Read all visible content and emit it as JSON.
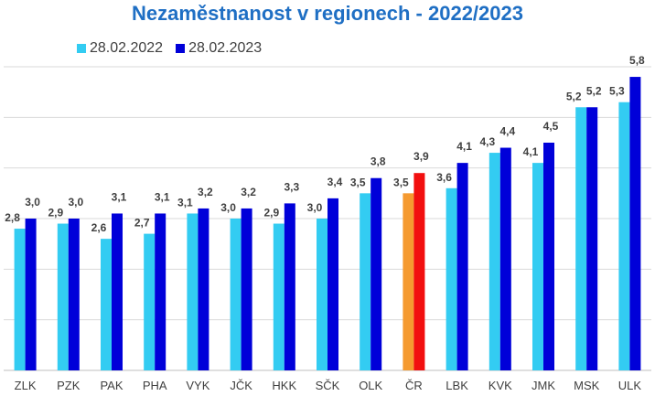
{
  "chart_data": {
    "type": "bar",
    "title": "Nezaměstnanost v regionech - 2022/2023",
    "categories": [
      "ZLK",
      "PZK",
      "PAK",
      "PHA",
      "VYK",
      "JČK",
      "HKK",
      "SČK",
      "OLK",
      "ČR",
      "LBK",
      "KVK",
      "JMK",
      "MSK",
      "ULK"
    ],
    "series": [
      {
        "name": "28.02.2022",
        "values": [
          2.8,
          2.9,
          2.6,
          2.7,
          3.1,
          3.0,
          2.9,
          3.0,
          3.5,
          3.5,
          3.6,
          4.3,
          4.1,
          5.2,
          5.3
        ],
        "labels": [
          "2,8",
          "2,9",
          "2,6",
          "2,7",
          "3,1",
          "3,0",
          "2,9",
          "3,0",
          "3,5",
          "3,5",
          "3,6",
          "4,3",
          "4,1",
          "5,2",
          "5,3"
        ]
      },
      {
        "name": "28.02.2023",
        "values": [
          3.0,
          3.0,
          3.1,
          3.1,
          3.2,
          3.2,
          3.3,
          3.4,
          3.8,
          3.9,
          4.1,
          4.4,
          4.5,
          5.2,
          5.8
        ],
        "labels": [
          "3,0",
          "3,0",
          "3,1",
          "3,1",
          "3,2",
          "3,2",
          "3,3",
          "3,4",
          "3,8",
          "3,9",
          "4,1",
          "4,4",
          "4,5",
          "5,2",
          "5,8"
        ]
      }
    ],
    "highlight_category": "ČR",
    "ylim": [
      0,
      6
    ],
    "grid": true,
    "legend_position": "top-left",
    "colors": {
      "series1": "#33ccf2",
      "series2": "#0000d9",
      "highlight1": "#f59a30",
      "highlight2": "#f20f0f",
      "grid": "#d9d9d9",
      "title": "#1f6fc4"
    }
  }
}
